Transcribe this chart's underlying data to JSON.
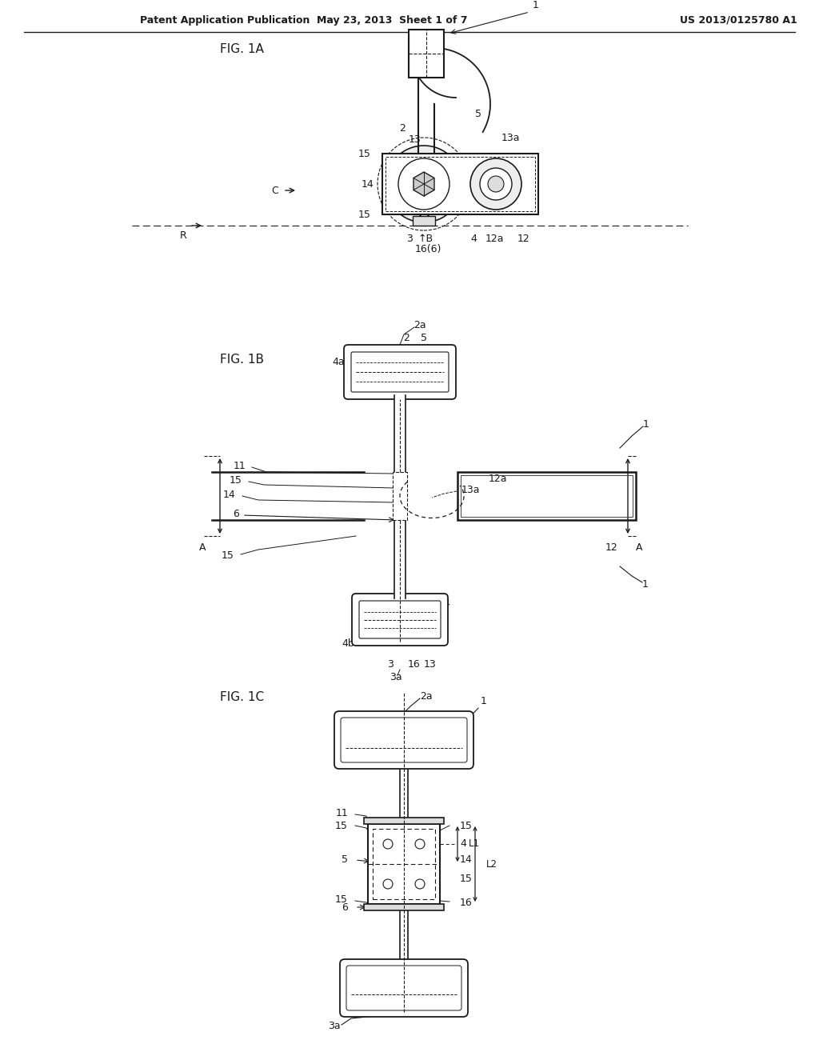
{
  "bg_color": "#ffffff",
  "lc": "#1a1a1a",
  "tc": "#1a1a1a",
  "header_left": "Patent Application Publication",
  "header_center": "May 23, 2013  Sheet 1 of 7",
  "header_right": "US 2013/0125780 A1",
  "fig1a_label": "FIG. 1A",
  "fig1b_label": "FIG. 1B",
  "fig1c_label": "FIG. 1C"
}
